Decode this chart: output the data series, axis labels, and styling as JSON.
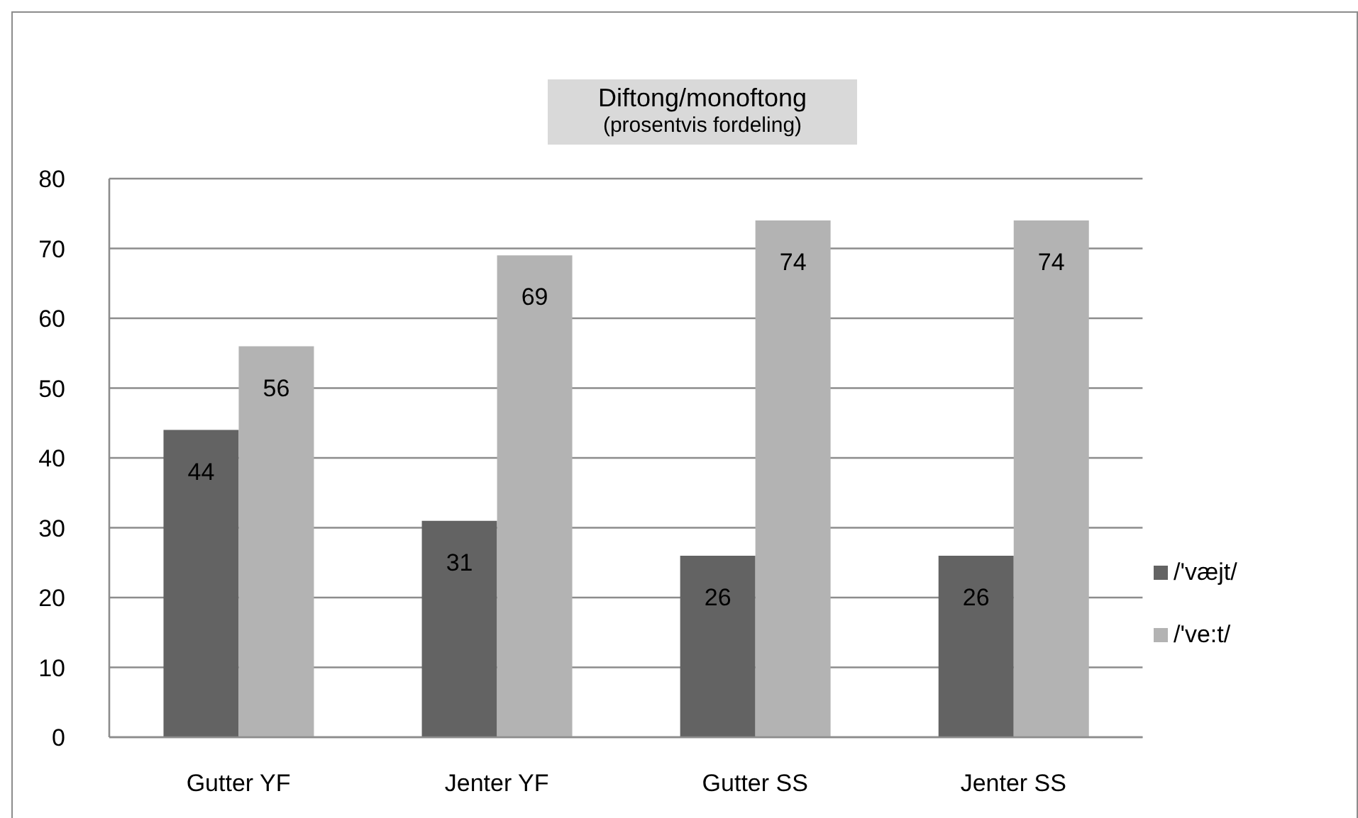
{
  "chart_data": {
    "type": "bar",
    "title": "Diftong/monoftong",
    "subtitle": "(prosentvis fordeling)",
    "categories": [
      "Gutter YF",
      "Jenter YF",
      "Gutter SS",
      "Jenter SS"
    ],
    "series": [
      {
        "name": "/'væjt/",
        "color": "#636363",
        "values": [
          44,
          31,
          26,
          26
        ]
      },
      {
        "name": "/'ve:t/",
        "color": "#b3b3b3",
        "values": [
          56,
          69,
          74,
          74
        ]
      }
    ],
    "ylim": [
      0,
      80
    ],
    "yticks": [
      0,
      10,
      20,
      30,
      40,
      50,
      60,
      70,
      80
    ],
    "grid": "y",
    "legend": "right",
    "data_labels": true
  }
}
